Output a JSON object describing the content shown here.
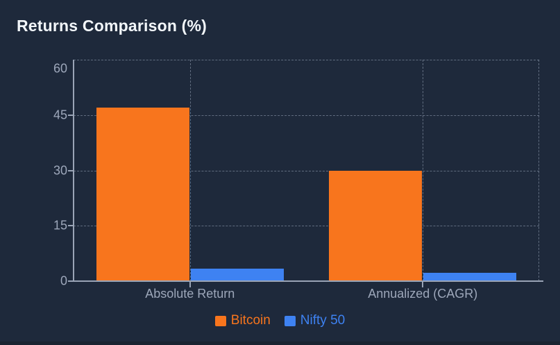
{
  "title": "Returns Comparison (%)",
  "chart_data": {
    "type": "bar",
    "title": "Returns Comparison (%)",
    "categories": [
      "Absolute Return",
      "Annualized (CAGR)"
    ],
    "series": [
      {
        "name": "Bitcoin",
        "color": "#F8751D",
        "values": [
          47,
          30
        ]
      },
      {
        "name": "Nifty 50",
        "color": "#3E82F2",
        "values": [
          3.3,
          2.3
        ]
      }
    ],
    "xlabel": "",
    "ylabel": "",
    "ylim": [
      0,
      60
    ],
    "yticks": [
      0,
      15,
      30,
      45,
      60
    ],
    "grid": "dashed",
    "legend_position": "bottom",
    "background": "#1E293B",
    "title_color": "#F2F6FA",
    "axis_color": "#9AA4B6",
    "tick_label_color": "#9DA7BA"
  }
}
